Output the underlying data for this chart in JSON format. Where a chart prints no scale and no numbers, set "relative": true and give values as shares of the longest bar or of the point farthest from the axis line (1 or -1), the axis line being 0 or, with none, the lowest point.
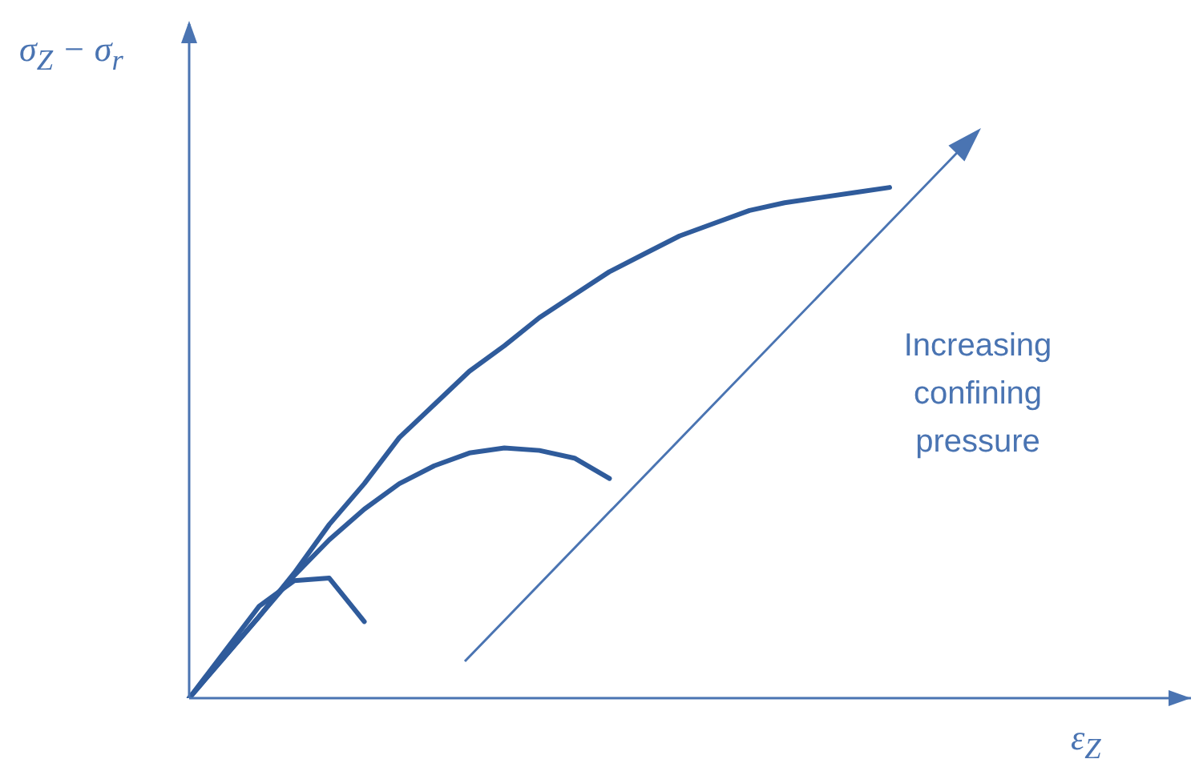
{
  "chart_data": {
    "type": "line",
    "relative": true,
    "xlabel": "ε$_{Z}$",
    "ylabel": "σ$_{Z}$ − σ$_{r}$",
    "tick_labels": false,
    "grid": false,
    "legend": false,
    "marker": "none",
    "line_style": "solid",
    "annotations": [
      "Increasing confining pressure"
    ],
    "categories": [
      null,
      null,
      null,
      null,
      null,
      null,
      null,
      null,
      null,
      null,
      null,
      null,
      null,
      null,
      null,
      null,
      null,
      null,
      null,
      null,
      null
    ],
    "series": [
      {
        "color": "#2f5b9b",
        "values": [
          0,
          0.08,
          0.16,
          0.245,
          0.34,
          0.42,
          0.51,
          0.575,
          0.64,
          0.69,
          0.745,
          0.79,
          0.835,
          0.87,
          0.905,
          0.93,
          0.955,
          0.97,
          0.98,
          0.99,
          1
        ]
      },
      {
        "color": "#2f5b9b",
        "values": [
          0,
          0.08,
          0.16,
          0.24,
          0.31,
          0.37,
          0.42,
          0.455,
          0.48,
          0.49,
          0.485,
          0.47,
          0.43,
          null,
          null,
          null,
          null,
          null,
          null,
          null,
          null
        ]
      },
      {
        "color": "#2f5b9b",
        "values": [
          0,
          0.09,
          0.18,
          0.23,
          0.235,
          0.15,
          null,
          null,
          null,
          null,
          null,
          null,
          null,
          null,
          null,
          null,
          null,
          null,
          null,
          null,
          null
        ]
      }
    ]
  }
}
